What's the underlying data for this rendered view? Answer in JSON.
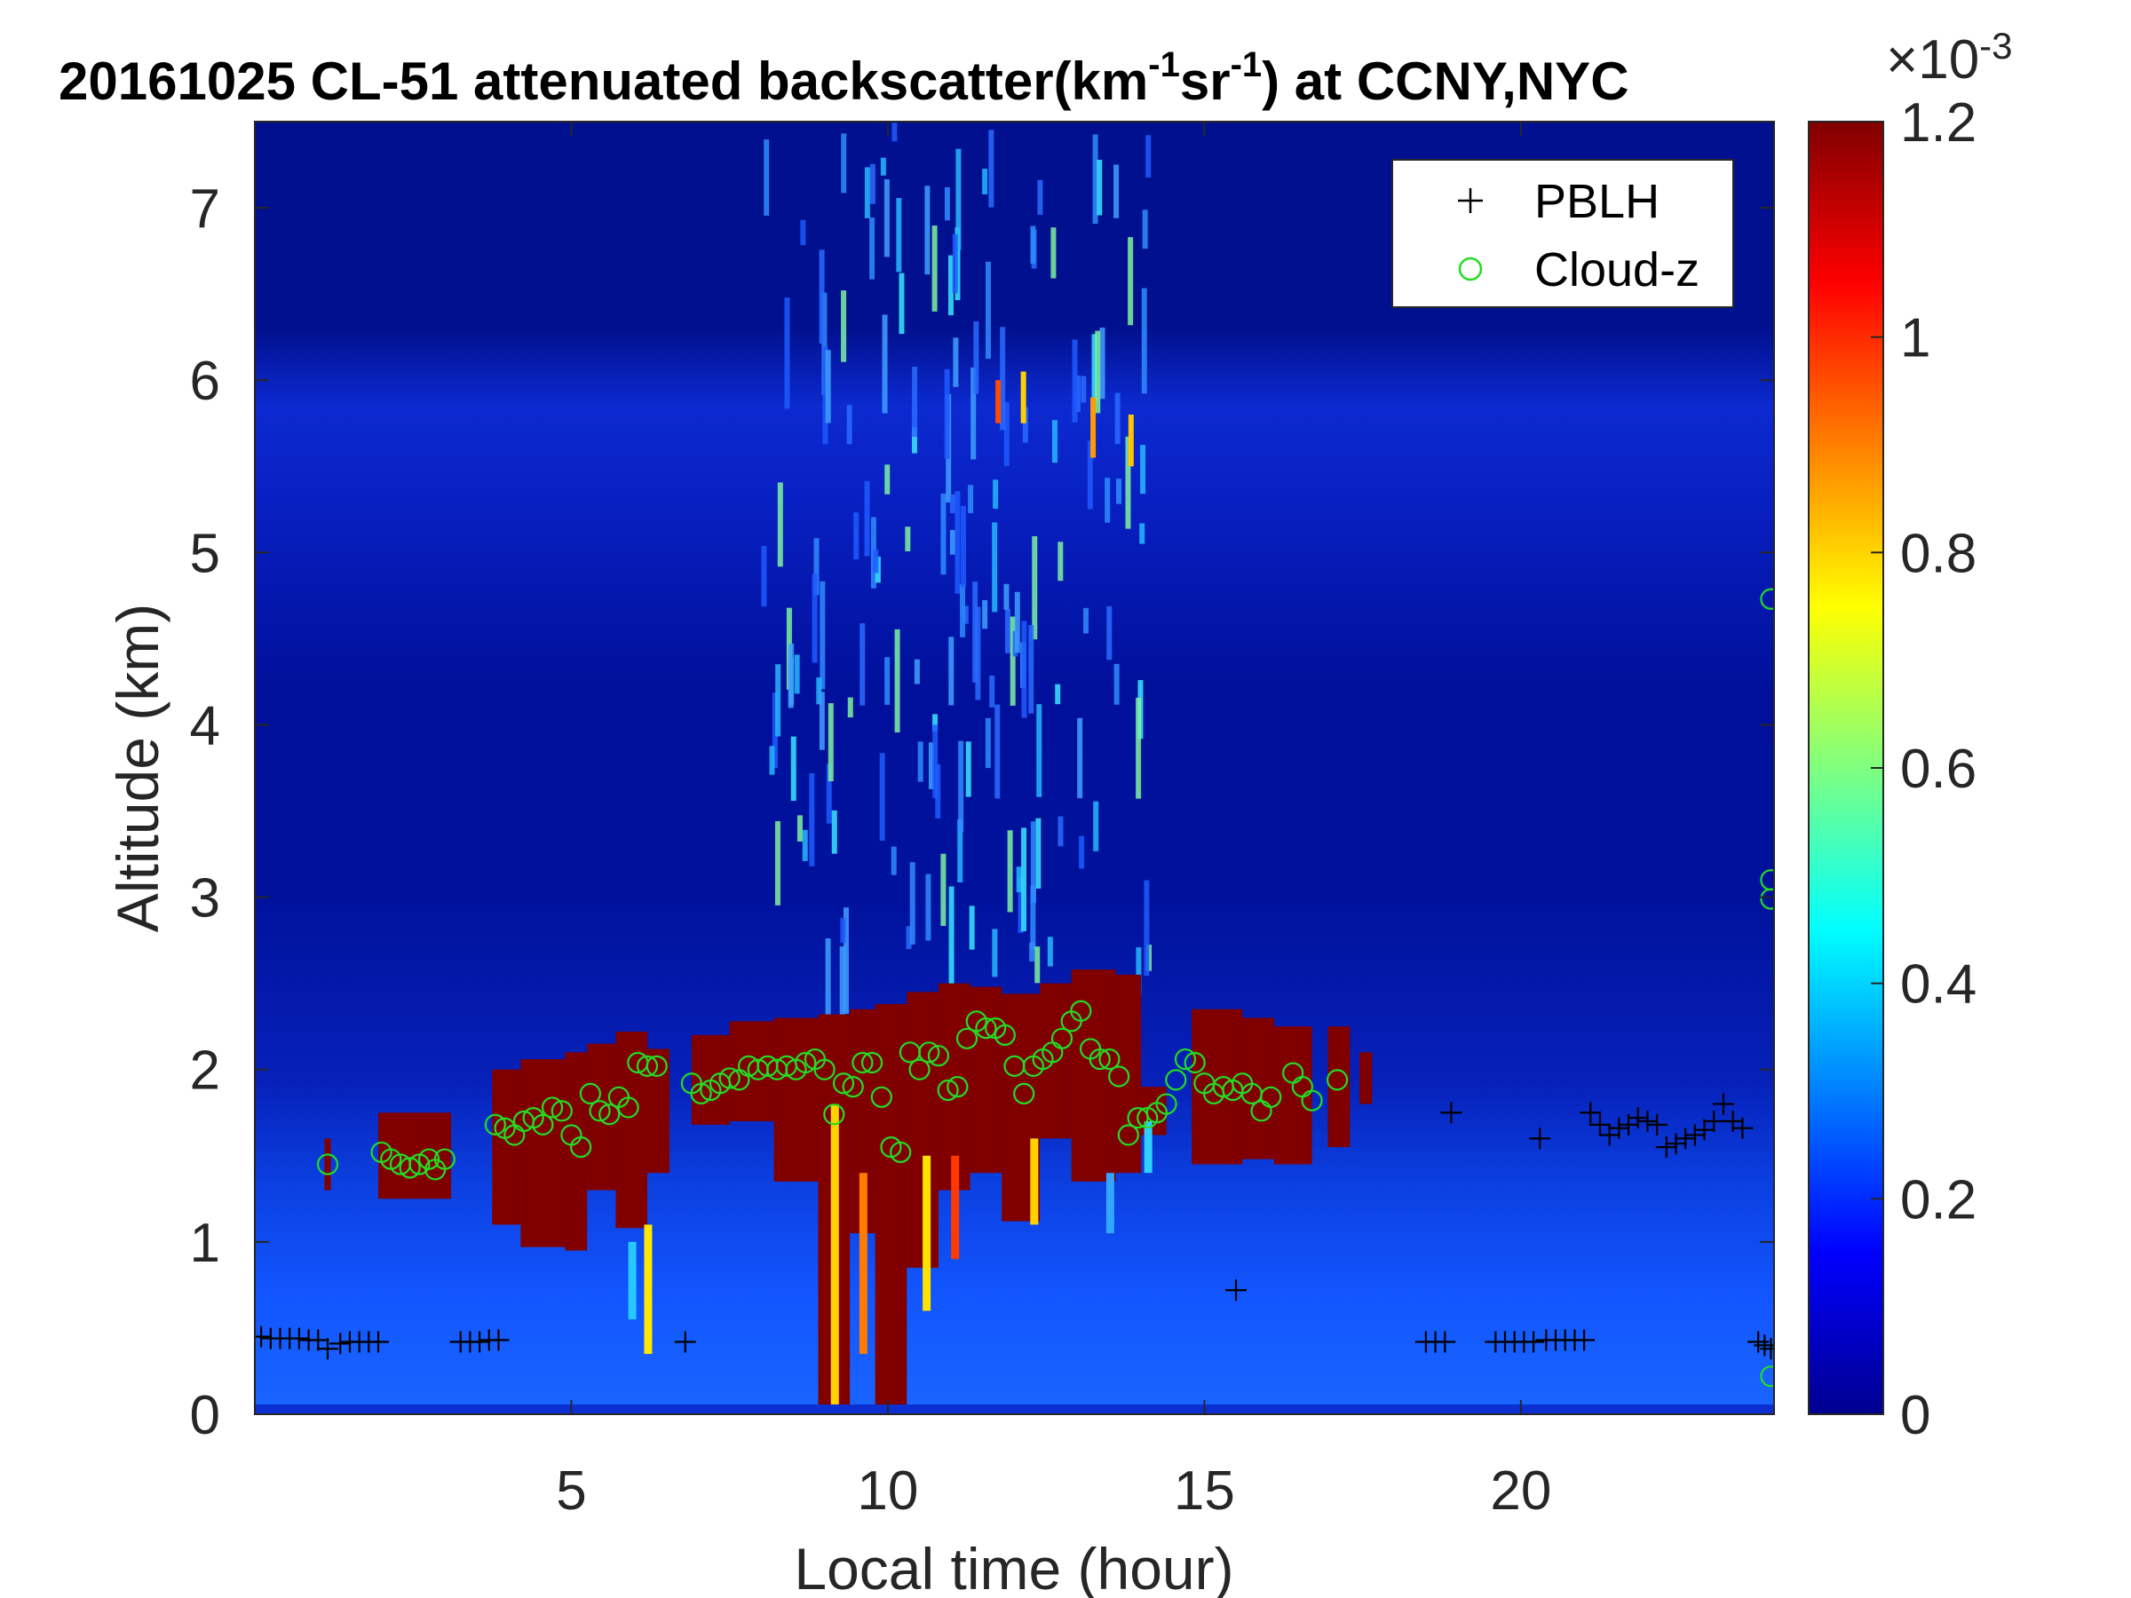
{
  "chart_data": {
    "type": "heatmap",
    "title": {
      "date": "20161025",
      "main": "CL-51 attenuated backscatter(km",
      "sup1": "-1",
      "mid": "sr",
      "sup2": "-1",
      "end": ") at CCNY,NYC"
    },
    "xlabel": "Local time (hour)",
    "ylabel": "Altitude (km)",
    "xlim": [
      0,
      24
    ],
    "ylim": [
      0,
      7.5
    ],
    "xticks": [
      5,
      10,
      15,
      20
    ],
    "yticks": [
      0,
      1,
      2,
      3,
      4,
      5,
      6,
      7
    ],
    "colorbar": {
      "colormap": "jet",
      "range": [
        0,
        0.0012
      ],
      "ticks": [
        0,
        0.2,
        0.4,
        0.6,
        0.8,
        1,
        1.2
      ],
      "multiplier_base": "×10",
      "multiplier_exp": "-3"
    },
    "legend": {
      "position": "top-right",
      "entries": [
        {
          "label": "PBLH",
          "marker": "+",
          "color": "#000000"
        },
        {
          "label": "Cloud-z",
          "marker": "o",
          "color": "#22dd22"
        }
      ]
    },
    "series": [
      {
        "name": "PBLH",
        "points": [
          [
            0.1,
            0.45
          ],
          [
            0.25,
            0.44
          ],
          [
            0.4,
            0.44
          ],
          [
            0.55,
            0.44
          ],
          [
            0.7,
            0.44
          ],
          [
            0.85,
            0.43
          ],
          [
            1.0,
            0.43
          ],
          [
            1.15,
            0.38
          ],
          [
            1.35,
            0.41
          ],
          [
            1.5,
            0.42
          ],
          [
            1.65,
            0.42
          ],
          [
            1.8,
            0.42
          ],
          [
            1.95,
            0.42
          ],
          [
            3.25,
            0.42
          ],
          [
            3.4,
            0.42
          ],
          [
            3.55,
            0.42
          ],
          [
            3.7,
            0.43
          ],
          [
            3.85,
            0.43
          ],
          [
            6.8,
            0.42
          ],
          [
            15.5,
            0.72
          ],
          [
            18.9,
            1.75
          ],
          [
            20.3,
            1.6
          ],
          [
            18.5,
            0.42
          ],
          [
            18.65,
            0.42
          ],
          [
            18.8,
            0.42
          ],
          [
            19.6,
            0.42
          ],
          [
            19.75,
            0.42
          ],
          [
            19.9,
            0.42
          ],
          [
            20.05,
            0.42
          ],
          [
            20.2,
            0.42
          ],
          [
            20.4,
            0.43
          ],
          [
            20.55,
            0.43
          ],
          [
            20.7,
            0.43
          ],
          [
            20.85,
            0.43
          ],
          [
            21.0,
            0.43
          ],
          [
            21.1,
            1.75
          ],
          [
            21.25,
            1.68
          ],
          [
            21.4,
            1.62
          ],
          [
            21.55,
            1.66
          ],
          [
            21.7,
            1.68
          ],
          [
            21.85,
            1.72
          ],
          [
            22.0,
            1.7
          ],
          [
            22.15,
            1.68
          ],
          [
            22.3,
            1.55
          ],
          [
            22.45,
            1.57
          ],
          [
            22.6,
            1.6
          ],
          [
            22.75,
            1.62
          ],
          [
            22.9,
            1.65
          ],
          [
            23.05,
            1.7
          ],
          [
            23.2,
            1.8
          ],
          [
            23.35,
            1.7
          ],
          [
            23.5,
            1.66
          ],
          [
            23.75,
            0.42
          ],
          [
            23.85,
            0.4
          ],
          [
            23.95,
            0.38
          ]
        ]
      },
      {
        "name": "Cloud-z",
        "points": [
          [
            1.15,
            1.45
          ],
          [
            2.0,
            1.52
          ],
          [
            2.15,
            1.48
          ],
          [
            2.3,
            1.45
          ],
          [
            2.45,
            1.43
          ],
          [
            2.6,
            1.45
          ],
          [
            2.75,
            1.48
          ],
          [
            2.85,
            1.42
          ],
          [
            3.0,
            1.48
          ],
          [
            3.8,
            1.68
          ],
          [
            3.95,
            1.66
          ],
          [
            4.1,
            1.62
          ],
          [
            4.25,
            1.7
          ],
          [
            4.4,
            1.72
          ],
          [
            4.55,
            1.68
          ],
          [
            4.7,
            1.78
          ],
          [
            4.85,
            1.76
          ],
          [
            5.0,
            1.62
          ],
          [
            5.15,
            1.55
          ],
          [
            5.3,
            1.86
          ],
          [
            5.45,
            1.76
          ],
          [
            5.6,
            1.74
          ],
          [
            5.75,
            1.84
          ],
          [
            5.9,
            1.78
          ],
          [
            6.05,
            2.04
          ],
          [
            6.2,
            2.02
          ],
          [
            6.35,
            2.02
          ],
          [
            6.9,
            1.92
          ],
          [
            7.05,
            1.86
          ],
          [
            7.2,
            1.88
          ],
          [
            7.35,
            1.92
          ],
          [
            7.5,
            1.95
          ],
          [
            7.65,
            1.94
          ],
          [
            7.8,
            2.02
          ],
          [
            7.95,
            2.0
          ],
          [
            8.1,
            2.02
          ],
          [
            8.25,
            2.0
          ],
          [
            8.4,
            2.02
          ],
          [
            8.55,
            2.0
          ],
          [
            8.7,
            2.04
          ],
          [
            8.85,
            2.06
          ],
          [
            9.0,
            2.0
          ],
          [
            9.15,
            1.74
          ],
          [
            9.3,
            1.92
          ],
          [
            9.45,
            1.9
          ],
          [
            9.6,
            2.04
          ],
          [
            9.75,
            2.04
          ],
          [
            9.9,
            1.84
          ],
          [
            10.05,
            1.55
          ],
          [
            10.2,
            1.52
          ],
          [
            10.35,
            2.1
          ],
          [
            10.5,
            2.0
          ],
          [
            10.65,
            2.1
          ],
          [
            10.8,
            2.08
          ],
          [
            10.95,
            1.88
          ],
          [
            11.1,
            1.9
          ],
          [
            11.25,
            2.18
          ],
          [
            11.4,
            2.28
          ],
          [
            11.55,
            2.24
          ],
          [
            11.7,
            2.24
          ],
          [
            11.85,
            2.2
          ],
          [
            12.0,
            2.02
          ],
          [
            12.15,
            1.86
          ],
          [
            12.3,
            2.02
          ],
          [
            12.45,
            2.06
          ],
          [
            12.6,
            2.1
          ],
          [
            12.75,
            2.18
          ],
          [
            12.9,
            2.28
          ],
          [
            13.05,
            2.34
          ],
          [
            13.2,
            2.12
          ],
          [
            13.35,
            2.06
          ],
          [
            13.5,
            2.06
          ],
          [
            13.65,
            1.96
          ],
          [
            13.8,
            1.62
          ],
          [
            13.95,
            1.72
          ],
          [
            14.1,
            1.72
          ],
          [
            14.25,
            1.75
          ],
          [
            14.4,
            1.8
          ],
          [
            14.55,
            1.94
          ],
          [
            14.7,
            2.06
          ],
          [
            14.85,
            2.04
          ],
          [
            15.0,
            1.92
          ],
          [
            15.15,
            1.86
          ],
          [
            15.3,
            1.9
          ],
          [
            15.45,
            1.88
          ],
          [
            15.6,
            1.92
          ],
          [
            15.75,
            1.86
          ],
          [
            15.9,
            1.76
          ],
          [
            16.05,
            1.84
          ],
          [
            16.4,
            1.98
          ],
          [
            16.55,
            1.9
          ],
          [
            16.7,
            1.82
          ],
          [
            17.1,
            1.94
          ],
          [
            23.95,
            4.73
          ],
          [
            23.95,
            3.1
          ],
          [
            23.95,
            2.99
          ],
          [
            23.95,
            0.22
          ]
        ]
      }
    ]
  }
}
